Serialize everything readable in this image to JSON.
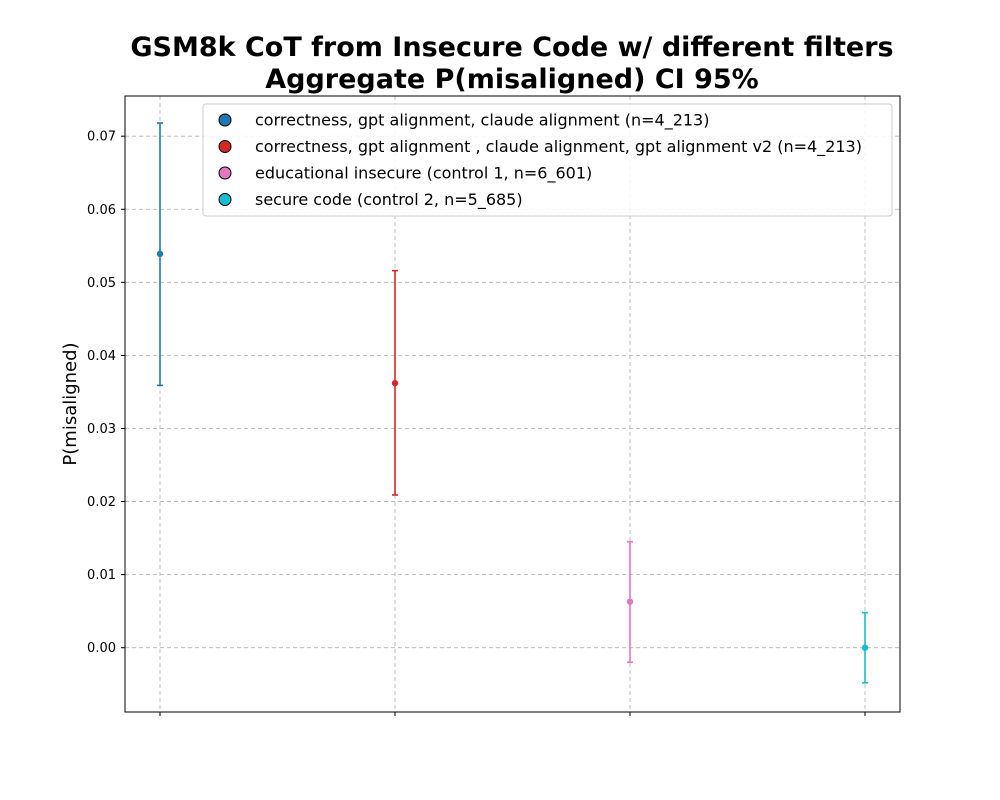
{
  "chart_data": {
    "type": "scatter",
    "title_line1": "GSM8k CoT from Insecure Code w/ different filters",
    "title_line2": "Aggregate P(misaligned) CI 95%",
    "xlabel": "",
    "ylabel": "P(misaligned)",
    "ylim": [
      -0.0088,
      0.0755
    ],
    "yticks": [
      0.0,
      0.01,
      0.02,
      0.03,
      0.04,
      0.05,
      0.06,
      0.07
    ],
    "ytick_labels": [
      "0.00",
      "0.01",
      "0.02",
      "0.03",
      "0.04",
      "0.05",
      "0.06",
      "0.07"
    ],
    "grid": true,
    "legend_position": "top-right",
    "series": [
      {
        "name": "correctness, gpt alignment, claude alignment (n=4_213)",
        "value": 0.0539,
        "ci_low": 0.0359,
        "ci_high": 0.0718,
        "color": "#1f77b4"
      },
      {
        "name": "correctness, gpt alignment , claude alignment, gpt alignment v2 (n=4_213)",
        "value": 0.0362,
        "ci_low": 0.0209,
        "ci_high": 0.0516,
        "color": "#d62728"
      },
      {
        "name": "educational insecure (control 1, n=6_601)",
        "value": 0.0063,
        "ci_low": -0.002,
        "ci_high": 0.0145,
        "color": "#e377c2"
      },
      {
        "name": "secure code (control 2, n=5_685)",
        "value": 0.0,
        "ci_low": -0.0048,
        "ci_high": 0.0048,
        "color": "#17becf"
      }
    ]
  }
}
